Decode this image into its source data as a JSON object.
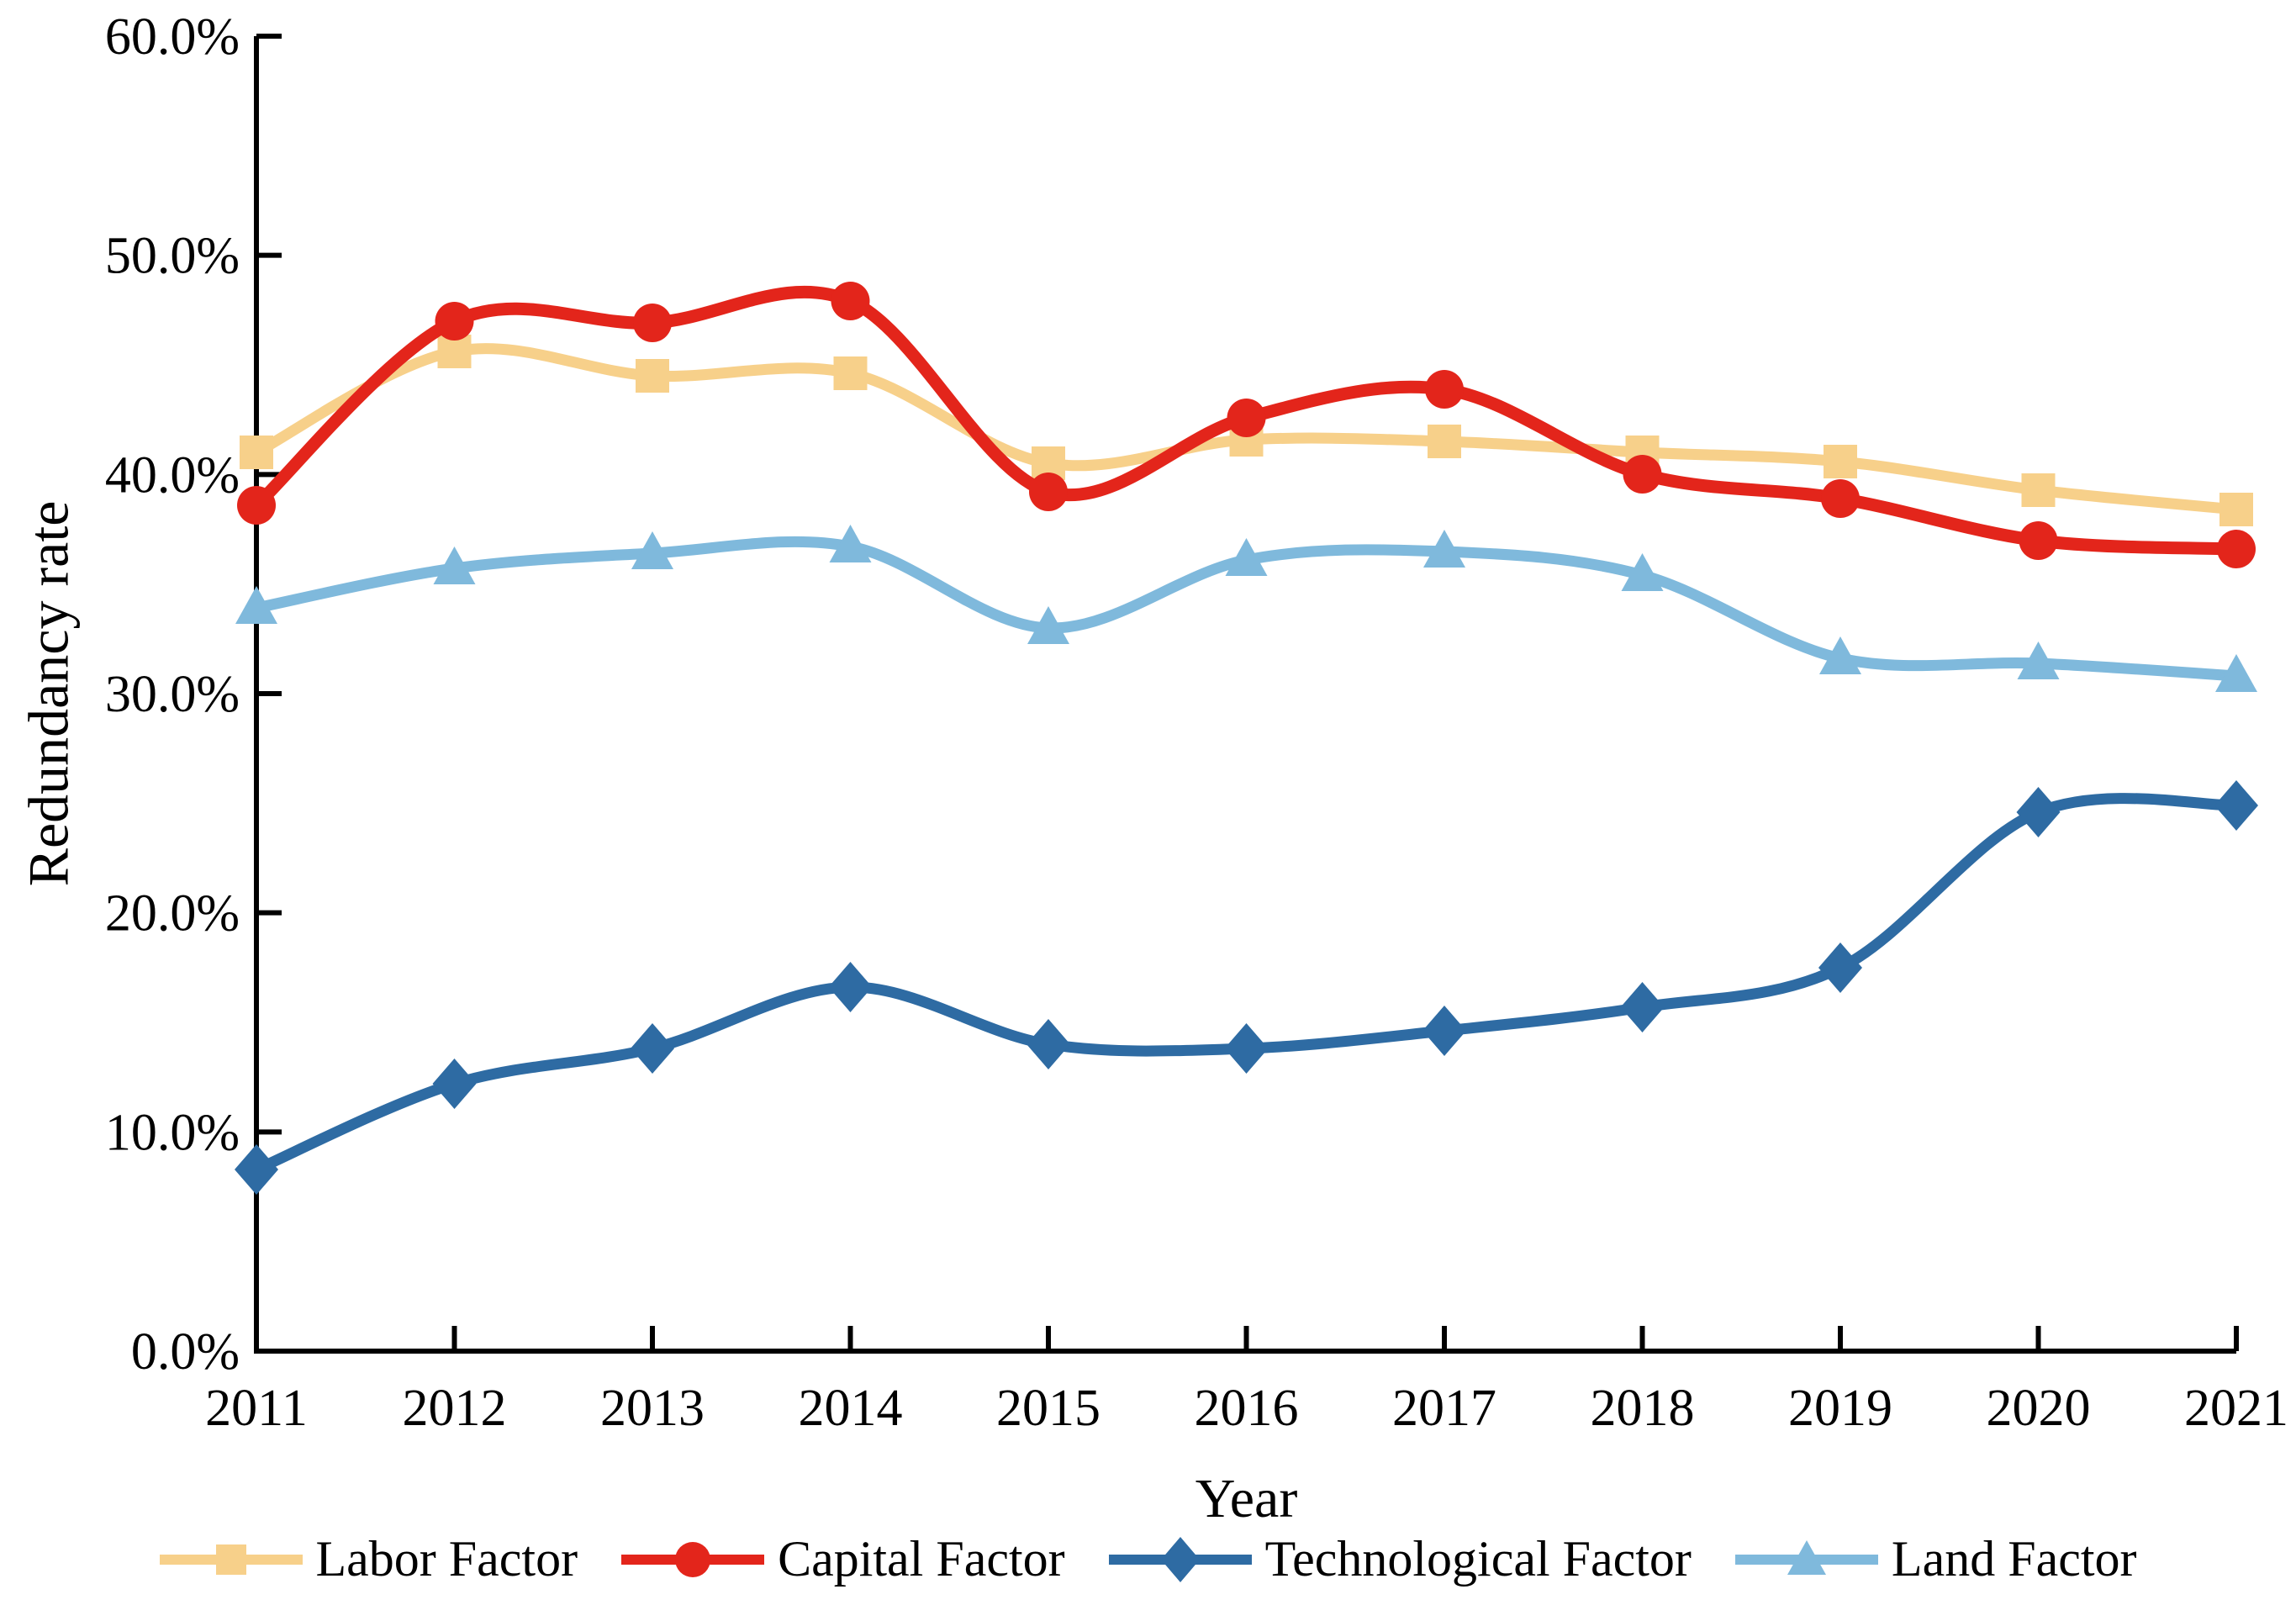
{
  "chart_data": {
    "type": "line",
    "title": "",
    "xlabel": "Year",
    "ylabel": "Redundancy rate",
    "x": [
      2011,
      2012,
      2013,
      2014,
      2015,
      2016,
      2017,
      2018,
      2019,
      2020,
      2021
    ],
    "x_tick_labels": [
      "2011",
      "2012",
      "2013",
      "2014",
      "2015",
      "2016",
      "2017",
      "2018",
      "2019",
      "2020",
      "2021"
    ],
    "y_ticks_percent": [
      0,
      10,
      20,
      30,
      40,
      50,
      60
    ],
    "y_tick_labels": [
      "0.0%",
      "10.0%",
      "20.0%",
      "30.0%",
      "40.0%",
      "50.0%",
      "60.0%"
    ],
    "ylim": [
      0,
      60
    ],
    "unit": "percent",
    "grid": false,
    "line_style": "smooth",
    "legend_position": "bottom",
    "axis_color": "#000000",
    "series": [
      {
        "name": "Labor Factor",
        "marker": "square",
        "color": "#F7D08A",
        "values": [
          41.0,
          45.6,
          44.5,
          44.6,
          40.5,
          41.6,
          41.5,
          41.0,
          40.6,
          39.3,
          38.4
        ]
      },
      {
        "name": "Capital Factor",
        "marker": "circle",
        "color": "#E3251B",
        "values": [
          38.6,
          47.0,
          46.9,
          47.9,
          39.2,
          42.6,
          43.9,
          40.0,
          38.9,
          37.0,
          36.6
        ]
      },
      {
        "name": "Technological Factor",
        "marker": "diamond",
        "color": "#2E6BA3",
        "values": [
          8.3,
          12.2,
          13.8,
          16.6,
          14.0,
          13.8,
          14.6,
          15.7,
          17.5,
          24.6,
          24.9
        ]
      },
      {
        "name": "Land Factor",
        "marker": "triangle",
        "color": "#7FB9DC",
        "values": [
          33.9,
          35.7,
          36.4,
          36.7,
          33.0,
          36.1,
          36.5,
          35.4,
          31.6,
          31.4,
          30.8
        ]
      }
    ]
  }
}
